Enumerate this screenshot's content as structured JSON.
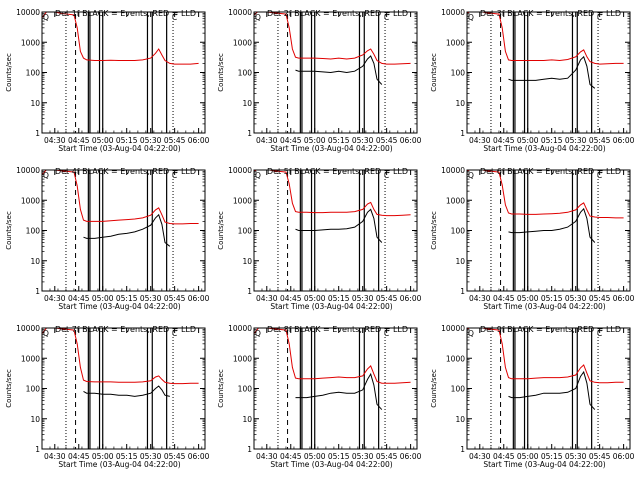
{
  "figure": {
    "xlabel": "Start Time (03-Aug-04 04:22:00)",
    "ylabel": "Counts/sec",
    "xticks": [
      "04:30",
      "04:45",
      "05:00",
      "05:15",
      "05:30",
      "05:45",
      "06:00"
    ],
    "yticks": [
      "1",
      "10",
      "100",
      "1000",
      "10000"
    ],
    "corner_glyphs": [
      "Q",
      "C"
    ]
  },
  "colors": {
    "events": "#000000",
    "lld": "#e00000",
    "axes": "#000000"
  },
  "chart_data": [
    {
      "type": "line",
      "title": "Det 1f BLACK = Events, RED = LLD",
      "xlabel": "Start Time (03-Aug-04 04:22:00)",
      "ylabel": "Counts/sec",
      "log_y": true,
      "ylim": [
        1,
        10000
      ],
      "xlim": [
        "04:22",
        "06:04"
      ],
      "x": [
        "04:22",
        "04:26",
        "04:30",
        "04:34",
        "04:38",
        "04:42",
        "04:44",
        "04:46",
        "04:48",
        "04:50",
        "04:55",
        "05:00",
        "05:05",
        "05:10",
        "05:15",
        "05:20",
        "05:25",
        "05:30",
        "05:33",
        "05:35",
        "05:37",
        "05:39",
        "05:42",
        "05:45",
        "05:50",
        "05:55",
        "06:00"
      ],
      "series": [
        {
          "name": "Events",
          "values": [
            null,
            null,
            null,
            null,
            null,
            null,
            null,
            null,
            null,
            null,
            null,
            null,
            null,
            null,
            null,
            null,
            null,
            null,
            null,
            null,
            null,
            null,
            null,
            null,
            null,
            null,
            null
          ]
        },
        {
          "name": "LLD",
          "values": [
            6500,
            12000,
            10000,
            9000,
            8500,
            8000,
            3000,
            500,
            300,
            260,
            250,
            250,
            255,
            250,
            250,
            250,
            260,
            300,
            430,
            600,
            380,
            250,
            200,
            190,
            190,
            190,
            200
          ]
        }
      ]
    },
    {
      "type": "line",
      "title": "Det 2f BLACK = Events, RED = LLD",
      "xlabel": "Start Time (03-Aug-04 04:22:00)",
      "ylabel": "Counts/sec",
      "log_y": true,
      "ylim": [
        1,
        10000
      ],
      "xlim": [
        "04:22",
        "06:04"
      ],
      "x": [
        "04:22",
        "04:26",
        "04:30",
        "04:34",
        "04:38",
        "04:42",
        "04:44",
        "04:46",
        "04:48",
        "04:50",
        "04:55",
        "05:00",
        "05:05",
        "05:10",
        "05:15",
        "05:20",
        "05:25",
        "05:30",
        "05:33",
        "05:35",
        "05:37",
        "05:39",
        "05:42",
        "05:45",
        "05:50",
        "05:55",
        "06:00"
      ],
      "series": [
        {
          "name": "Events",
          "values": [
            null,
            null,
            null,
            null,
            null,
            null,
            null,
            null,
            120,
            110,
            110,
            110,
            105,
            100,
            110,
            100,
            110,
            160,
            280,
            350,
            200,
            60,
            40,
            null,
            null,
            null,
            null
          ]
        },
        {
          "name": "LLD",
          "values": [
            8000,
            12000,
            10000,
            9500,
            9000,
            8500,
            3000,
            600,
            320,
            300,
            300,
            300,
            290,
            280,
            300,
            280,
            300,
            380,
            520,
            600,
            400,
            250,
            200,
            190,
            190,
            195,
            200
          ]
        }
      ]
    },
    {
      "type": "line",
      "title": "Det 3f BLACK = Events, RED = LLD",
      "xlabel": "Start Time (03-Aug-04 04:22:00)",
      "ylabel": "Counts/sec",
      "log_y": true,
      "ylim": [
        1,
        10000
      ],
      "xlim": [
        "04:22",
        "06:04"
      ],
      "x": [
        "04:22",
        "04:26",
        "04:30",
        "04:34",
        "04:38",
        "04:42",
        "04:44",
        "04:46",
        "04:48",
        "04:50",
        "04:55",
        "05:00",
        "05:05",
        "05:10",
        "05:15",
        "05:20",
        "05:25",
        "05:30",
        "05:33",
        "05:35",
        "05:37",
        "05:39",
        "05:42",
        "05:45",
        "05:50",
        "05:55",
        "06:00"
      ],
      "series": [
        {
          "name": "Events",
          "values": [
            null,
            null,
            null,
            null,
            null,
            null,
            null,
            null,
            60,
            55,
            55,
            55,
            55,
            60,
            65,
            60,
            65,
            120,
            260,
            330,
            160,
            40,
            30,
            null,
            null,
            null,
            null
          ]
        },
        {
          "name": "LLD",
          "values": [
            9000,
            12000,
            10500,
            9500,
            9000,
            8500,
            3000,
            500,
            260,
            250,
            250,
            250,
            250,
            250,
            260,
            250,
            270,
            330,
            480,
            560,
            330,
            230,
            200,
            190,
            195,
            200,
            200
          ]
        }
      ]
    },
    {
      "type": "line",
      "title": "Det 4f BLACK = Events, RED = LLD",
      "xlabel": "Start Time (03-Aug-04 04:22:00)",
      "ylabel": "Counts/sec",
      "log_y": true,
      "ylim": [
        1,
        10000
      ],
      "xlim": [
        "04:22",
        "06:04"
      ],
      "x": [
        "04:22",
        "04:26",
        "04:30",
        "04:34",
        "04:38",
        "04:42",
        "04:44",
        "04:46",
        "04:48",
        "04:50",
        "04:55",
        "05:00",
        "05:05",
        "05:10",
        "05:15",
        "05:20",
        "05:25",
        "05:30",
        "05:33",
        "05:35",
        "05:37",
        "05:39",
        "05:42",
        "05:45",
        "05:50",
        "05:55",
        "06:00"
      ],
      "series": [
        {
          "name": "Events",
          "values": [
            null,
            null,
            null,
            null,
            null,
            null,
            null,
            null,
            60,
            55,
            55,
            60,
            65,
            75,
            80,
            90,
            110,
            150,
            260,
            330,
            160,
            40,
            30,
            null,
            null,
            null,
            null
          ]
        },
        {
          "name": "LLD",
          "values": [
            7000,
            12000,
            10000,
            9500,
            9000,
            8500,
            3000,
            500,
            220,
            200,
            200,
            200,
            210,
            220,
            230,
            240,
            260,
            320,
            480,
            560,
            330,
            190,
            170,
            165,
            165,
            170,
            170
          ]
        }
      ]
    },
    {
      "type": "line",
      "title": "Det 5f BLACK = Events, RED = LLD",
      "xlabel": "Start Time (03-Aug-04 04:22:00)",
      "ylabel": "Counts/sec",
      "log_y": true,
      "ylim": [
        1,
        10000
      ],
      "xlim": [
        "04:22",
        "06:04"
      ],
      "x": [
        "04:22",
        "04:26",
        "04:30",
        "04:34",
        "04:38",
        "04:42",
        "04:44",
        "04:46",
        "04:48",
        "04:50",
        "04:55",
        "05:00",
        "05:05",
        "05:10",
        "05:15",
        "05:20",
        "05:25",
        "05:30",
        "05:33",
        "05:35",
        "05:37",
        "05:39",
        "05:42",
        "05:45",
        "05:50",
        "05:55",
        "06:00"
      ],
      "series": [
        {
          "name": "Events",
          "values": [
            null,
            null,
            null,
            null,
            null,
            null,
            null,
            null,
            110,
            100,
            100,
            100,
            105,
            110,
            110,
            115,
            130,
            200,
            400,
            500,
            250,
            60,
            40,
            null,
            null,
            null,
            null
          ]
        },
        {
          "name": "LLD",
          "values": [
            9000,
            12000,
            10500,
            9500,
            9000,
            8500,
            3500,
            800,
            420,
            400,
            400,
            390,
            390,
            400,
            400,
            400,
            420,
            500,
            750,
            850,
            500,
            340,
            320,
            310,
            310,
            320,
            330
          ]
        }
      ]
    },
    {
      "type": "line",
      "title": "Det 6f BLACK = Events, RED = LLD",
      "xlabel": "Start Time (03-Aug-04 04:22:00)",
      "ylabel": "Counts/sec",
      "log_y": true,
      "ylim": [
        1,
        10000
      ],
      "xlim": [
        "04:22",
        "06:04"
      ],
      "x": [
        "04:22",
        "04:26",
        "04:30",
        "04:34",
        "04:38",
        "04:42",
        "04:44",
        "04:46",
        "04:48",
        "04:50",
        "04:55",
        "05:00",
        "05:05",
        "05:10",
        "05:15",
        "05:20",
        "05:25",
        "05:30",
        "05:33",
        "05:35",
        "05:37",
        "05:39",
        "05:42",
        "05:45",
        "05:50",
        "05:55",
        "06:00"
      ],
      "series": [
        {
          "name": "Events",
          "values": [
            null,
            null,
            null,
            null,
            null,
            null,
            null,
            null,
            90,
            85,
            85,
            90,
            95,
            100,
            100,
            110,
            130,
            200,
            400,
            520,
            250,
            60,
            40,
            null,
            null,
            null,
            null
          ]
        },
        {
          "name": "LLD",
          "values": [
            9000,
            12000,
            10500,
            9500,
            9000,
            8500,
            3200,
            700,
            380,
            350,
            350,
            340,
            340,
            350,
            360,
            370,
            400,
            480,
            700,
            820,
            480,
            300,
            280,
            270,
            270,
            260,
            260
          ]
        }
      ]
    },
    {
      "type": "line",
      "title": "Det 7f BLACK = Events, RED = LLD",
      "xlabel": "Start Time (03-Aug-04 04:22:00)",
      "ylabel": "Counts/sec",
      "log_y": true,
      "ylim": [
        1,
        10000
      ],
      "xlim": [
        "04:22",
        "06:04"
      ],
      "x": [
        "04:22",
        "04:26",
        "04:30",
        "04:34",
        "04:38",
        "04:42",
        "04:44",
        "04:46",
        "04:48",
        "04:50",
        "04:55",
        "05:00",
        "05:05",
        "05:10",
        "05:15",
        "05:20",
        "05:25",
        "05:30",
        "05:33",
        "05:35",
        "05:37",
        "05:39",
        "05:42",
        "05:45",
        "05:50",
        "05:55",
        "06:00"
      ],
      "series": [
        {
          "name": "Events",
          "values": [
            null,
            null,
            null,
            null,
            null,
            null,
            null,
            null,
            80,
            70,
            70,
            65,
            65,
            60,
            60,
            55,
            60,
            70,
            100,
            120,
            90,
            60,
            55,
            null,
            null,
            null,
            null
          ]
        },
        {
          "name": "LLD",
          "values": [
            6500,
            12000,
            10000,
            9500,
            9000,
            8500,
            3000,
            500,
            190,
            170,
            165,
            165,
            165,
            160,
            160,
            160,
            165,
            180,
            240,
            260,
            200,
            160,
            150,
            145,
            145,
            150,
            150
          ]
        }
      ]
    },
    {
      "type": "line",
      "title": "Det 8f BLACK = Events, RED = LLD",
      "xlabel": "Start Time (03-Aug-04 04:22:00)",
      "ylabel": "Counts/sec",
      "log_y": true,
      "ylim": [
        1,
        10000
      ],
      "xlim": [
        "04:22",
        "06:04"
      ],
      "x": [
        "04:22",
        "04:26",
        "04:30",
        "04:34",
        "04:38",
        "04:42",
        "04:44",
        "04:46",
        "04:48",
        "04:50",
        "04:55",
        "05:00",
        "05:05",
        "05:10",
        "05:15",
        "05:20",
        "05:25",
        "05:30",
        "05:33",
        "05:35",
        "05:37",
        "05:39",
        "05:42",
        "05:45",
        "05:50",
        "05:55",
        "06:00"
      ],
      "series": [
        {
          "name": "Events",
          "values": [
            null,
            null,
            null,
            null,
            null,
            null,
            null,
            null,
            50,
            50,
            50,
            55,
            60,
            70,
            75,
            70,
            70,
            90,
            200,
            300,
            130,
            30,
            20,
            null,
            null,
            null,
            null
          ]
        },
        {
          "name": "LLD",
          "values": [
            6500,
            12000,
            10000,
            9500,
            9000,
            8500,
            3000,
            500,
            220,
            210,
            210,
            210,
            220,
            230,
            240,
            230,
            230,
            260,
            440,
            560,
            300,
            170,
            150,
            150,
            150,
            155,
            160
          ]
        }
      ]
    },
    {
      "type": "line",
      "title": "Det 9f BLACK = Events, RED = LLD",
      "xlabel": "Start Time (03-Aug-04 04:22:00)",
      "ylabel": "Counts/sec",
      "log_y": true,
      "ylim": [
        1,
        10000
      ],
      "xlim": [
        "04:22",
        "06:04"
      ],
      "x": [
        "04:22",
        "04:26",
        "04:30",
        "04:34",
        "04:38",
        "04:42",
        "04:44",
        "04:46",
        "04:48",
        "04:50",
        "04:55",
        "05:00",
        "05:05",
        "05:10",
        "05:15",
        "05:20",
        "05:25",
        "05:30",
        "05:33",
        "05:35",
        "05:37",
        "05:39",
        "05:42",
        "05:45",
        "05:50",
        "05:55",
        "06:00"
      ],
      "series": [
        {
          "name": "Events",
          "values": [
            null,
            null,
            null,
            null,
            null,
            null,
            null,
            null,
            55,
            50,
            50,
            55,
            60,
            70,
            70,
            70,
            75,
            100,
            250,
            350,
            150,
            30,
            20,
            null,
            null,
            null,
            null
          ]
        },
        {
          "name": "LLD",
          "values": [
            9000,
            12000,
            10500,
            9500,
            9000,
            8500,
            3000,
            500,
            230,
            210,
            210,
            210,
            220,
            230,
            230,
            230,
            240,
            280,
            480,
            600,
            320,
            180,
            160,
            155,
            155,
            160,
            160
          ]
        }
      ]
    }
  ],
  "markers": {
    "dotted": [
      "04:37",
      "05:44"
    ],
    "dashed": [
      "04:43"
    ],
    "solid": [
      "04:51",
      "04:52",
      "04:58",
      "05:00",
      "05:28",
      "05:31",
      "05:40"
    ]
  }
}
